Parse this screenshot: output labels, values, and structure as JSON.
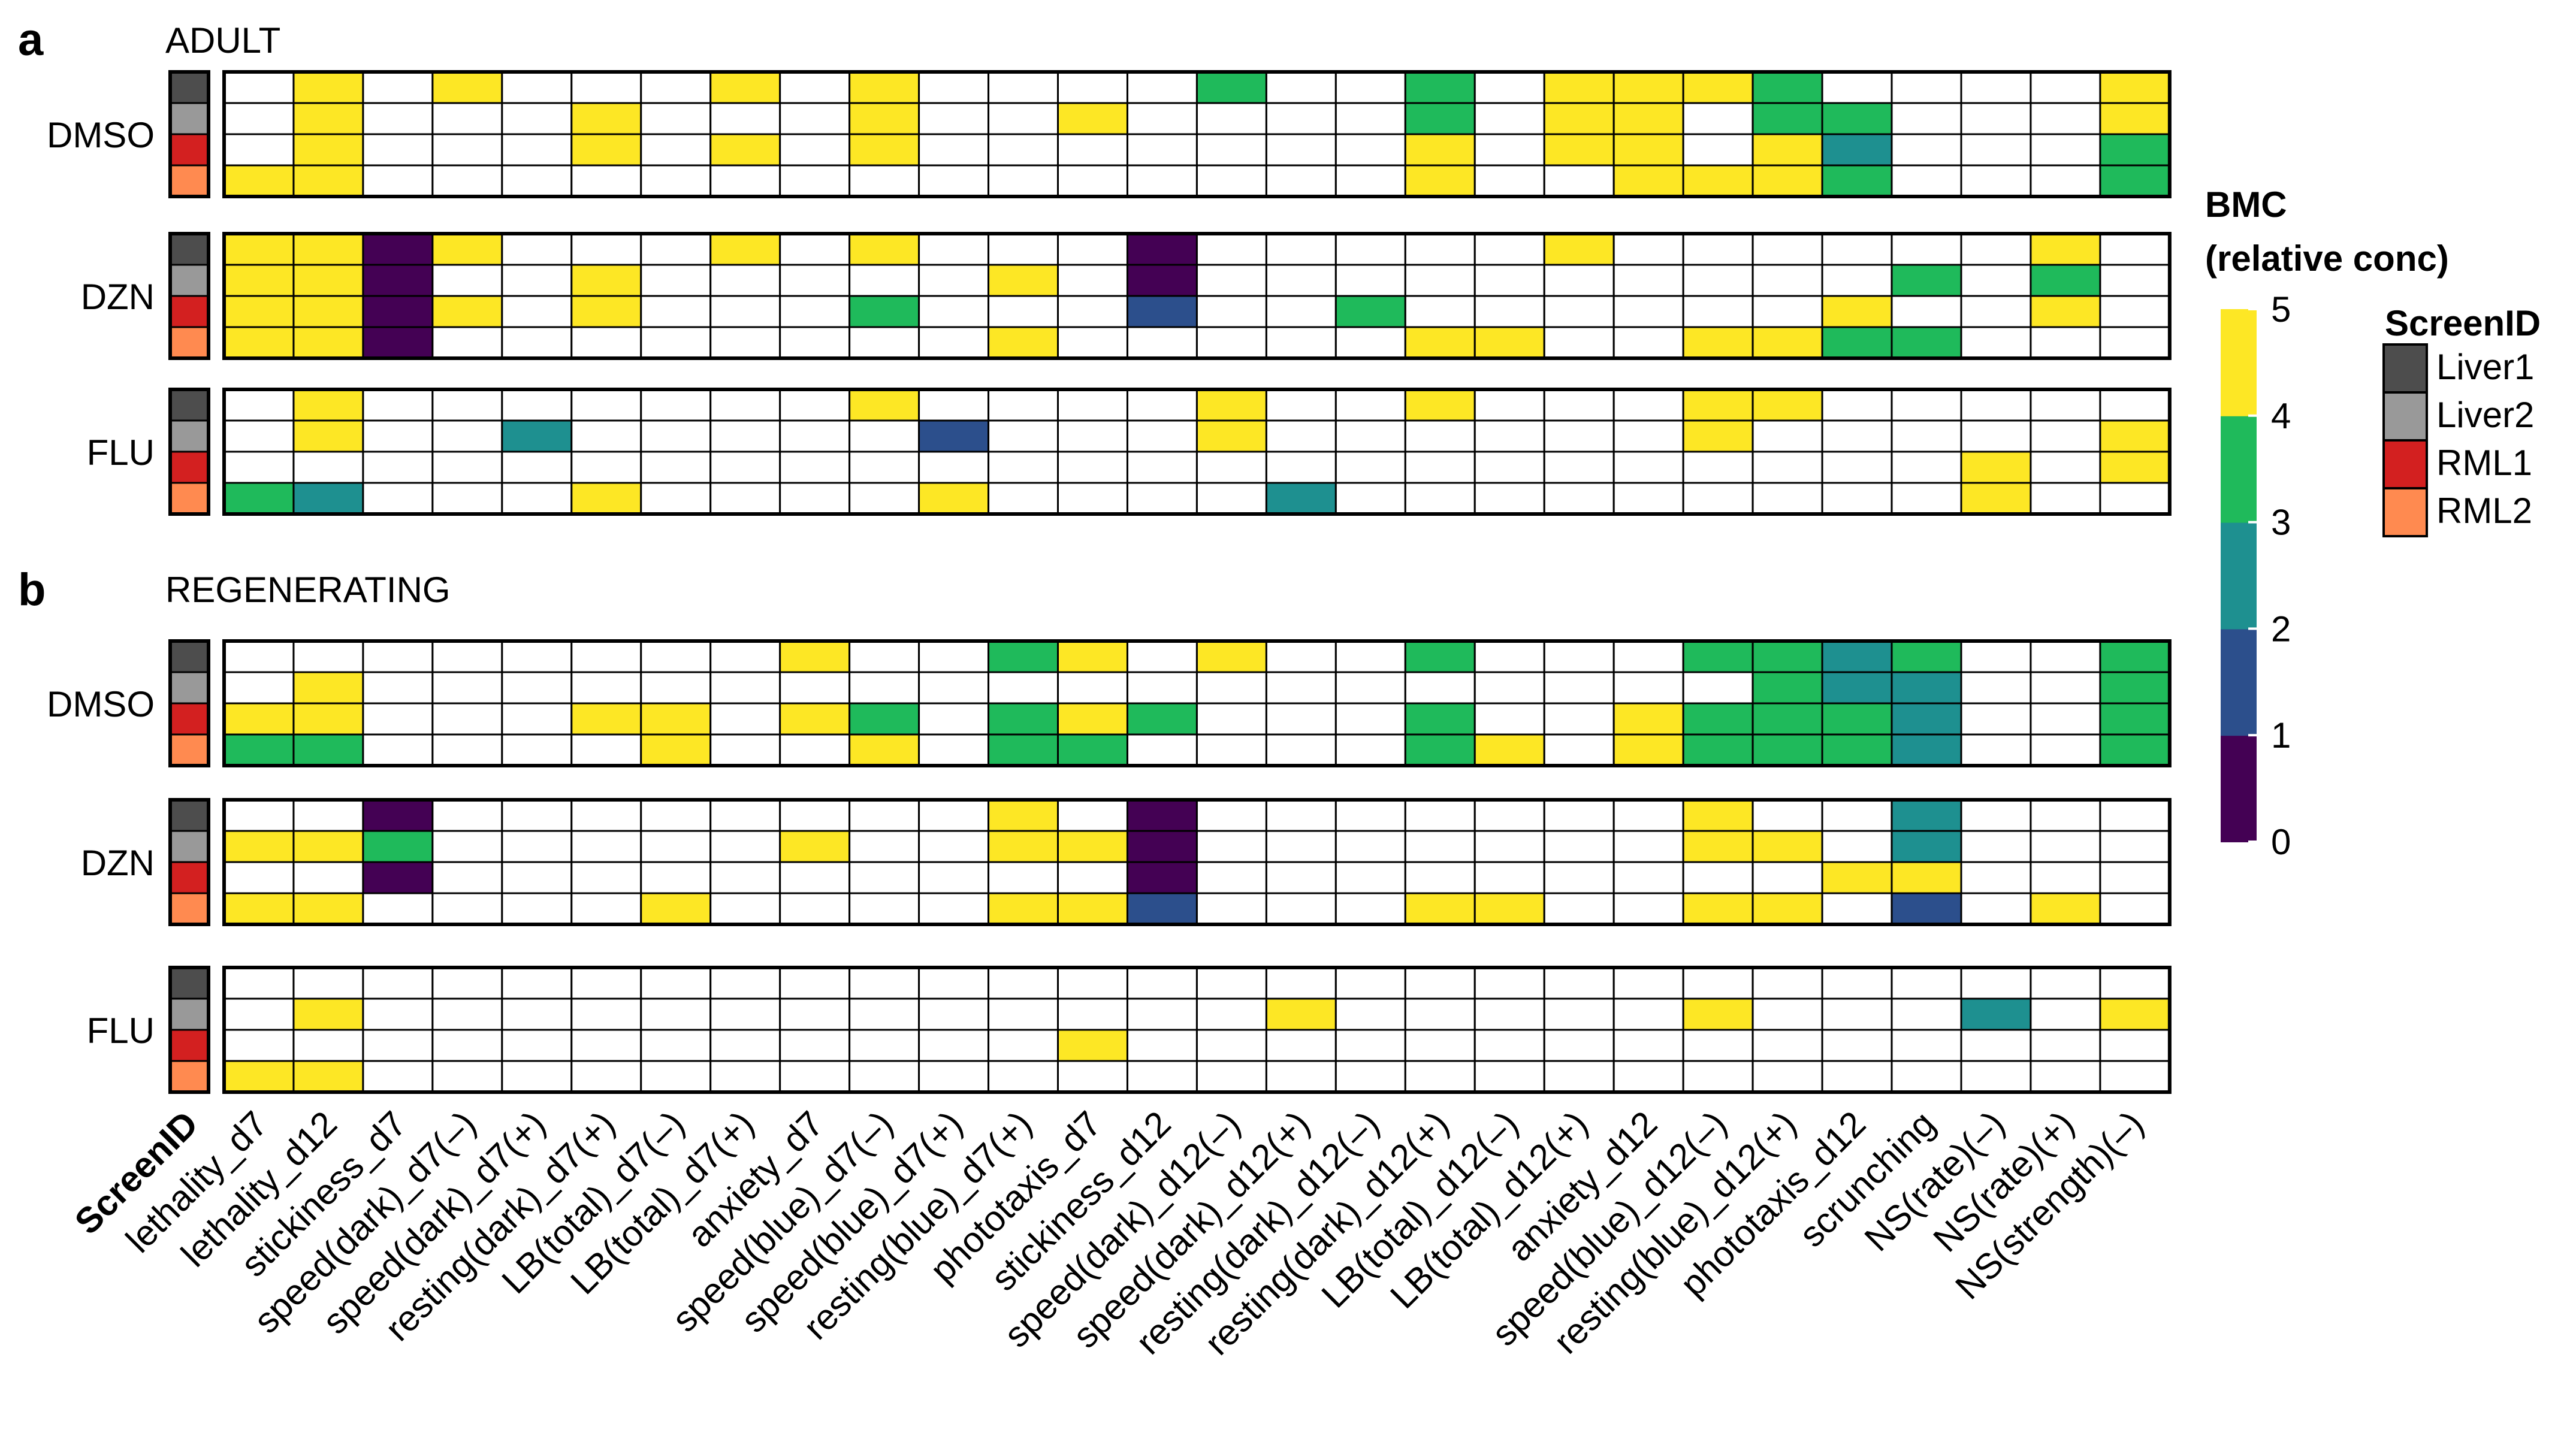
{
  "chart_data": {
    "type": "heatmap",
    "panels": [
      {
        "letter": "a",
        "title": "ADULT"
      },
      {
        "letter": "b",
        "title": "REGENERATING"
      }
    ],
    "groups": [
      "DMSO",
      "DZN",
      "FLU"
    ],
    "screen_ids": [
      "Liver1",
      "Liver2",
      "RML1",
      "RML2"
    ],
    "screen_colors": {
      "Liver1": "#4d4d4d",
      "Liver2": "#999999",
      "RML1": "#d32020",
      "RML2": "#ff8a50"
    },
    "x_axis_first_label": "ScreenID",
    "endpoints": [
      "lethality_d7",
      "lethality_d12",
      "stickiness_d7",
      "speed(dark)_d7(–)",
      "speed(dark)_d7(+)",
      "resting(dark)_d7(+)",
      "LB(total)_d7(–)",
      "LB(total)_d7(+)",
      "anxiety_d7",
      "speed(blue)_d7(–)",
      "speed(blue)_d7(+)",
      "resting(blue)_d7(+)",
      "phototaxis_d7",
      "stickiness_d12",
      "speed(dark)_d12(–)",
      "speed(dark)_d12(+)",
      "resting(dark)_d12(–)",
      "resting(dark)_d12(+)",
      "LB(total)_d12(–)",
      "LB(total)_d12(+)",
      "anxiety_d12",
      "speed(blue)_d12(–)",
      "resting(blue)_d12(+)",
      "phototaxis_d12",
      "scrunching",
      "NS(rate)(–)",
      "NS(rate)(+)",
      "NS(strength)(–)"
    ],
    "value_note": "BMC bins: 5 = >=4 (yellow), 4 = 3-4 (green), 3 = 2-3 (teal), 2 = 1-2 (blue), 1 = 0-1 (purple), 0 = no BMC (white)",
    "color_bins": [
      "#ffffff",
      "#440154",
      "#2c4f8c",
      "#1e9090",
      "#1fba5b",
      "#fde725"
    ],
    "legend": {
      "bmc_title_line1": "BMC",
      "bmc_title_line2": "(relative conc)",
      "bmc_ticks": [
        "0",
        "1",
        "2",
        "3",
        "4",
        "5"
      ],
      "screen_title": "ScreenID",
      "colorbar_colors": [
        "#440154",
        "#2c4f8c",
        "#1e9090",
        "#1fba5b",
        "#fde725"
      ]
    },
    "blocks": [
      [
        [
          [
            0,
            5,
            0,
            5,
            0,
            0,
            0,
            5,
            0,
            5,
            0,
            0,
            0,
            0,
            4,
            0,
            0,
            4,
            0,
            5,
            5,
            5,
            4,
            0,
            0,
            0,
            0,
            5
          ],
          [
            0,
            5,
            0,
            0,
            0,
            5,
            0,
            0,
            0,
            5,
            0,
            0,
            5,
            0,
            0,
            0,
            0,
            4,
            0,
            5,
            5,
            0,
            4,
            4,
            0,
            0,
            0,
            5
          ],
          [
            0,
            5,
            0,
            0,
            0,
            5,
            0,
            5,
            0,
            5,
            0,
            0,
            0,
            0,
            0,
            0,
            0,
            5,
            0,
            5,
            5,
            0,
            5,
            3,
            0,
            0,
            0,
            4
          ],
          [
            5,
            5,
            0,
            0,
            0,
            0,
            0,
            0,
            0,
            0,
            0,
            0,
            0,
            0,
            0,
            0,
            0,
            5,
            0,
            0,
            5,
            5,
            5,
            4,
            0,
            0,
            0,
            4
          ]
        ],
        [
          [
            5,
            5,
            1,
            5,
            0,
            0,
            0,
            5,
            0,
            5,
            0,
            0,
            0,
            1,
            0,
            0,
            0,
            0,
            0,
            5,
            0,
            0,
            0,
            0,
            0,
            0,
            5,
            0
          ],
          [
            5,
            5,
            1,
            0,
            0,
            5,
            0,
            0,
            0,
            0,
            0,
            5,
            0,
            1,
            0,
            0,
            0,
            0,
            0,
            0,
            0,
            0,
            0,
            0,
            4,
            0,
            4,
            0
          ],
          [
            5,
            5,
            1,
            5,
            0,
            5,
            0,
            0,
            0,
            4,
            0,
            0,
            0,
            2,
            0,
            0,
            4,
            0,
            0,
            0,
            0,
            0,
            0,
            5,
            0,
            0,
            5,
            0
          ],
          [
            5,
            5,
            1,
            0,
            0,
            0,
            0,
            0,
            0,
            0,
            0,
            5,
            0,
            0,
            0,
            0,
            0,
            5,
            5,
            0,
            0,
            5,
            5,
            4,
            4,
            0,
            0,
            0
          ]
        ],
        [
          [
            0,
            5,
            0,
            0,
            0,
            0,
            0,
            0,
            0,
            5,
            0,
            0,
            0,
            0,
            5,
            0,
            0,
            5,
            0,
            0,
            0,
            5,
            5,
            0,
            0,
            0,
            0,
            0
          ],
          [
            0,
            5,
            0,
            0,
            3,
            0,
            0,
            0,
            0,
            0,
            2,
            0,
            0,
            0,
            5,
            0,
            0,
            0,
            0,
            0,
            0,
            5,
            0,
            0,
            0,
            0,
            0,
            5
          ],
          [
            0,
            0,
            0,
            0,
            0,
            0,
            0,
            0,
            0,
            0,
            0,
            0,
            0,
            0,
            0,
            0,
            0,
            0,
            0,
            0,
            0,
            0,
            0,
            0,
            0,
            5,
            0,
            5
          ],
          [
            4,
            3,
            0,
            0,
            0,
            5,
            0,
            0,
            0,
            0,
            5,
            0,
            0,
            0,
            0,
            3,
            0,
            0,
            0,
            0,
            0,
            0,
            0,
            0,
            0,
            5,
            0,
            0
          ]
        ]
      ],
      [
        [
          [
            0,
            0,
            0,
            0,
            0,
            0,
            0,
            0,
            5,
            0,
            0,
            4,
            5,
            0,
            5,
            0,
            0,
            4,
            0,
            0,
            0,
            4,
            4,
            3,
            4,
            0,
            0,
            4
          ],
          [
            0,
            5,
            0,
            0,
            0,
            0,
            0,
            0,
            0,
            0,
            0,
            0,
            0,
            0,
            0,
            0,
            0,
            0,
            0,
            0,
            0,
            0,
            4,
            3,
            3,
            0,
            0,
            4
          ],
          [
            5,
            5,
            0,
            0,
            0,
            5,
            5,
            0,
            5,
            4,
            0,
            4,
            5,
            4,
            0,
            0,
            0,
            4,
            0,
            0,
            5,
            4,
            4,
            4,
            3,
            0,
            0,
            4
          ],
          [
            4,
            4,
            0,
            0,
            0,
            0,
            5,
            0,
            0,
            5,
            0,
            4,
            4,
            0,
            0,
            0,
            0,
            4,
            5,
            0,
            5,
            4,
            4,
            4,
            3,
            0,
            0,
            4
          ]
        ],
        [
          [
            0,
            0,
            1,
            0,
            0,
            0,
            0,
            0,
            0,
            0,
            0,
            5,
            0,
            1,
            0,
            0,
            0,
            0,
            0,
            0,
            0,
            5,
            0,
            0,
            3,
            0,
            0,
            0
          ],
          [
            5,
            5,
            4,
            0,
            0,
            0,
            0,
            0,
            5,
            0,
            0,
            5,
            5,
            1,
            0,
            0,
            0,
            0,
            0,
            0,
            0,
            5,
            5,
            0,
            3,
            0,
            0,
            0
          ],
          [
            0,
            0,
            1,
            0,
            0,
            0,
            0,
            0,
            0,
            0,
            0,
            0,
            0,
            1,
            0,
            0,
            0,
            0,
            0,
            0,
            0,
            0,
            0,
            5,
            5,
            0,
            0,
            0
          ],
          [
            5,
            5,
            0,
            0,
            0,
            0,
            5,
            0,
            0,
            0,
            0,
            5,
            5,
            2,
            0,
            0,
            0,
            5,
            5,
            0,
            0,
            5,
            5,
            0,
            2,
            0,
            5,
            0
          ]
        ],
        [
          [
            0,
            0,
            0,
            0,
            0,
            0,
            0,
            0,
            0,
            0,
            0,
            0,
            0,
            0,
            0,
            0,
            0,
            0,
            0,
            0,
            0,
            0,
            0,
            0,
            0,
            0,
            0,
            0
          ],
          [
            0,
            5,
            0,
            0,
            0,
            0,
            0,
            0,
            0,
            0,
            0,
            0,
            0,
            0,
            0,
            5,
            0,
            0,
            0,
            0,
            0,
            5,
            0,
            0,
            0,
            3,
            0,
            5
          ],
          [
            0,
            0,
            0,
            0,
            0,
            0,
            0,
            0,
            0,
            0,
            0,
            0,
            5,
            0,
            0,
            0,
            0,
            0,
            0,
            0,
            0,
            0,
            0,
            0,
            0,
            0,
            0,
            0
          ],
          [
            5,
            5,
            0,
            0,
            0,
            0,
            0,
            0,
            0,
            0,
            0,
            0,
            0,
            0,
            0,
            0,
            0,
            0,
            0,
            0,
            0,
            0,
            0,
            0,
            0,
            0,
            0,
            0
          ]
        ]
      ]
    ]
  }
}
